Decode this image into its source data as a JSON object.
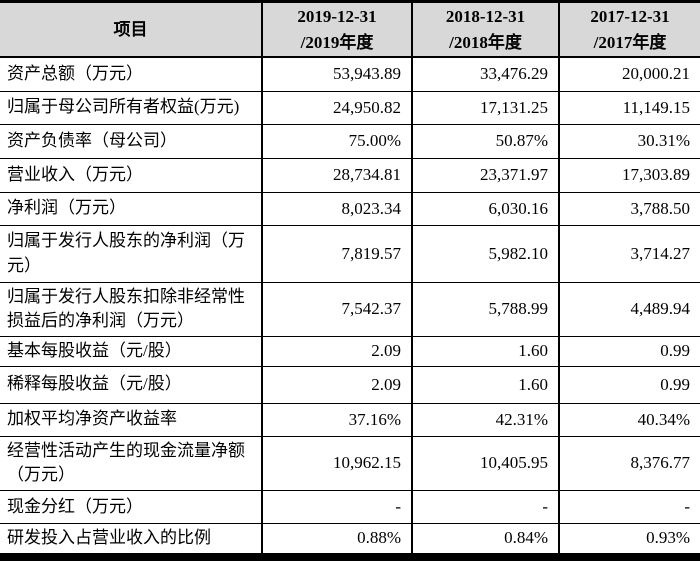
{
  "table": {
    "header": {
      "item_col": "项目",
      "period_cols": [
        {
          "line1": "2019-12-31",
          "line2": "/2019年度"
        },
        {
          "line1": "2018-12-31",
          "line2": "/2018年度"
        },
        {
          "line1": "2017-12-31",
          "line2": "/2017年度"
        }
      ]
    },
    "rows": [
      {
        "label": "资产总额（万元）",
        "values": [
          "53,943.89",
          "33,476.29",
          "20,000.21"
        ]
      },
      {
        "label": "归属于母公司所有者权益(万元)",
        "values": [
          "24,950.82",
          "17,131.25",
          "11,149.15"
        ]
      },
      {
        "label": "资产负债率（母公司）",
        "values": [
          "75.00%",
          "50.87%",
          "30.31%"
        ]
      },
      {
        "label": "营业收入（万元）",
        "values": [
          "28,734.81",
          "23,371.97",
          "17,303.89"
        ]
      },
      {
        "label": "净利润（万元）",
        "values": [
          "8,023.34",
          "6,030.16",
          "3,788.50"
        ]
      },
      {
        "label": "归属于发行人股东的净利润（万元）",
        "values": [
          "7,819.57",
          "5,982.10",
          "3,714.27"
        ]
      },
      {
        "label": "归属于发行人股东扣除非经常性损益后的净利润（万元）",
        "values": [
          "7,542.37",
          "5,788.99",
          "4,489.94"
        ]
      },
      {
        "label": "基本每股收益（元/股）",
        "values": [
          "2.09",
          "1.60",
          "0.99"
        ]
      },
      {
        "label": "稀释每股收益（元/股）",
        "values": [
          "2.09",
          "1.60",
          "0.99"
        ]
      },
      {
        "label": "加权平均净资产收益率",
        "values": [
          "37.16%",
          "42.31%",
          "40.34%"
        ]
      },
      {
        "label": "经营性活动产生的现金流量净额（万元）",
        "values": [
          "10,962.15",
          "10,405.95",
          "8,376.77"
        ]
      },
      {
        "label": "现金分红（万元）",
        "values": [
          "-",
          "-",
          "-"
        ]
      },
      {
        "label": "研发投入占营业收入的比例",
        "values": [
          "0.88%",
          "0.84%",
          "0.93%"
        ]
      }
    ],
    "colors": {
      "header_bg": "#d8d8d8",
      "border": "#000000",
      "text": "#000000",
      "background": "#ffffff"
    }
  }
}
